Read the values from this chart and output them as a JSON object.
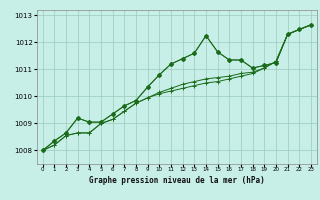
{
  "title": "Graphe pression niveau de la mer (hPa)",
  "bg_color": "#c8eee8",
  "grid_color": "#99ccbb",
  "line_color": "#1a6b1a",
  "x_labels": [
    "0",
    "1",
    "2",
    "3",
    "4",
    "5",
    "6",
    "7",
    "8",
    "9",
    "10",
    "11",
    "12",
    "13",
    "14",
    "15",
    "16",
    "17",
    "18",
    "19",
    "20",
    "21",
    "22",
    "23"
  ],
  "ylim": [
    1007.5,
    1013.2
  ],
  "yticks": [
    1008,
    1009,
    1010,
    1011,
    1012,
    1013
  ],
  "series": [
    [
      1008.0,
      1008.2,
      1008.55,
      1008.65,
      1008.65,
      1009.0,
      1009.15,
      1009.45,
      1009.75,
      1009.95,
      1010.1,
      1010.2,
      1010.3,
      1010.4,
      1010.5,
      1010.55,
      1010.65,
      1010.75,
      1010.85,
      1011.05,
      1011.3,
      1012.3,
      1012.48,
      1012.65
    ],
    [
      1008.0,
      1008.2,
      1008.55,
      1008.65,
      1008.65,
      1009.0,
      1009.15,
      1009.45,
      1009.75,
      1009.95,
      1010.15,
      1010.3,
      1010.45,
      1010.55,
      1010.65,
      1010.7,
      1010.75,
      1010.85,
      1010.9,
      1011.05,
      1011.3,
      1012.3,
      1012.48,
      1012.65
    ],
    [
      1008.0,
      1008.35,
      1008.65,
      1009.2,
      1009.05,
      1009.05,
      1009.35,
      1009.65,
      1009.85,
      1010.35,
      1010.8,
      1011.2,
      1011.4,
      1011.6,
      1012.25,
      1011.65,
      1011.35,
      1011.35,
      1011.05,
      1011.15,
      1011.25,
      1012.3,
      1012.48,
      1012.65
    ],
    [
      1008.0,
      1008.35,
      1008.65,
      1009.2,
      1009.05,
      1009.05,
      1009.35,
      1009.65,
      1009.85,
      1010.35,
      1010.8,
      1011.2,
      1011.4,
      1011.6,
      1012.25,
      1011.65,
      1011.35,
      1011.35,
      1011.05,
      1011.15,
      1011.25,
      1012.3,
      1012.48,
      1012.65
    ]
  ]
}
